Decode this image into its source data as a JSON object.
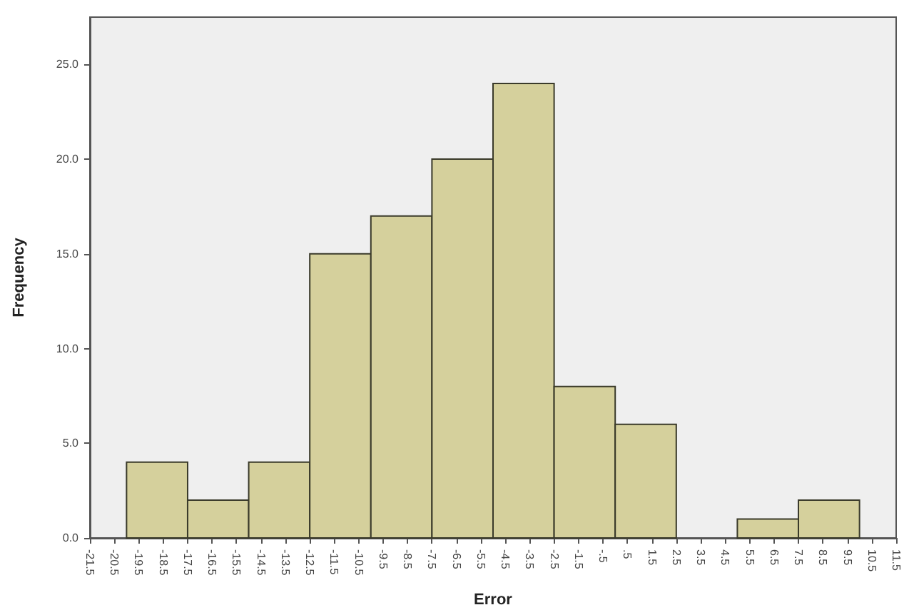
{
  "chart_data": {
    "type": "histogram",
    "xlabel": "Error",
    "ylabel": "Frequency",
    "bins": [
      -20,
      -17.5,
      -15,
      -12.5,
      -10,
      -7.5,
      -5,
      -2.5,
      0,
      2.5,
      5,
      7.5,
      10
    ],
    "values": [
      4,
      2,
      4,
      15,
      17,
      20,
      24,
      8,
      6,
      0,
      1,
      2
    ],
    "color": "#d5d09c",
    "xlim": [
      -21.5,
      11.5
    ],
    "xticks": [
      {
        "value": -21.5,
        "label": "-21.5"
      },
      {
        "value": -20.5,
        "label": "-20.5"
      },
      {
        "value": -19.5,
        "label": "-19.5"
      },
      {
        "value": -18.5,
        "label": "-18.5"
      },
      {
        "value": -17.5,
        "label": "-17.5"
      },
      {
        "value": -16.5,
        "label": "-16.5"
      },
      {
        "value": -15.5,
        "label": "-15.5"
      },
      {
        "value": -14.5,
        "label": "-14.5"
      },
      {
        "value": -13.5,
        "label": "-13.5"
      },
      {
        "value": -12.5,
        "label": "-12.5"
      },
      {
        "value": -11.5,
        "label": "-11.5"
      },
      {
        "value": -10.5,
        "label": "-10.5"
      },
      {
        "value": -9.5,
        "label": "-9.5"
      },
      {
        "value": -8.5,
        "label": "-8.5"
      },
      {
        "value": -7.5,
        "label": "-7.5"
      },
      {
        "value": -6.5,
        "label": "-6.5"
      },
      {
        "value": -5.5,
        "label": "-5.5"
      },
      {
        "value": -4.5,
        "label": "-4.5"
      },
      {
        "value": -3.5,
        "label": "-3.5"
      },
      {
        "value": -2.5,
        "label": "-2.5"
      },
      {
        "value": -1.5,
        "label": "-1.5"
      },
      {
        "value": -0.5,
        "label": "-.5"
      },
      {
        "value": 0.5,
        "label": ".5"
      },
      {
        "value": 1.5,
        "label": "1.5"
      },
      {
        "value": 2.5,
        "label": "2.5"
      },
      {
        "value": 3.5,
        "label": "3.5"
      },
      {
        "value": 4.5,
        "label": "4.5"
      },
      {
        "value": 5.5,
        "label": "5.5"
      },
      {
        "value": 6.5,
        "label": "6.5"
      },
      {
        "value": 7.5,
        "label": "7.5"
      },
      {
        "value": 8.5,
        "label": "8.5"
      },
      {
        "value": 9.5,
        "label": "9.5"
      },
      {
        "value": 10.5,
        "label": "10.5"
      },
      {
        "value": 11.5,
        "label": "11.5"
      }
    ],
    "ylim": [
      0,
      27.5
    ],
    "yticks": [
      {
        "value": 0,
        "label": "0.0"
      },
      {
        "value": 5,
        "label": "5.0"
      },
      {
        "value": 10,
        "label": "10.0"
      },
      {
        "value": 15,
        "label": "15.0"
      },
      {
        "value": 20,
        "label": "20.0"
      },
      {
        "value": 25,
        "label": "25.0"
      }
    ],
    "grid": false
  }
}
